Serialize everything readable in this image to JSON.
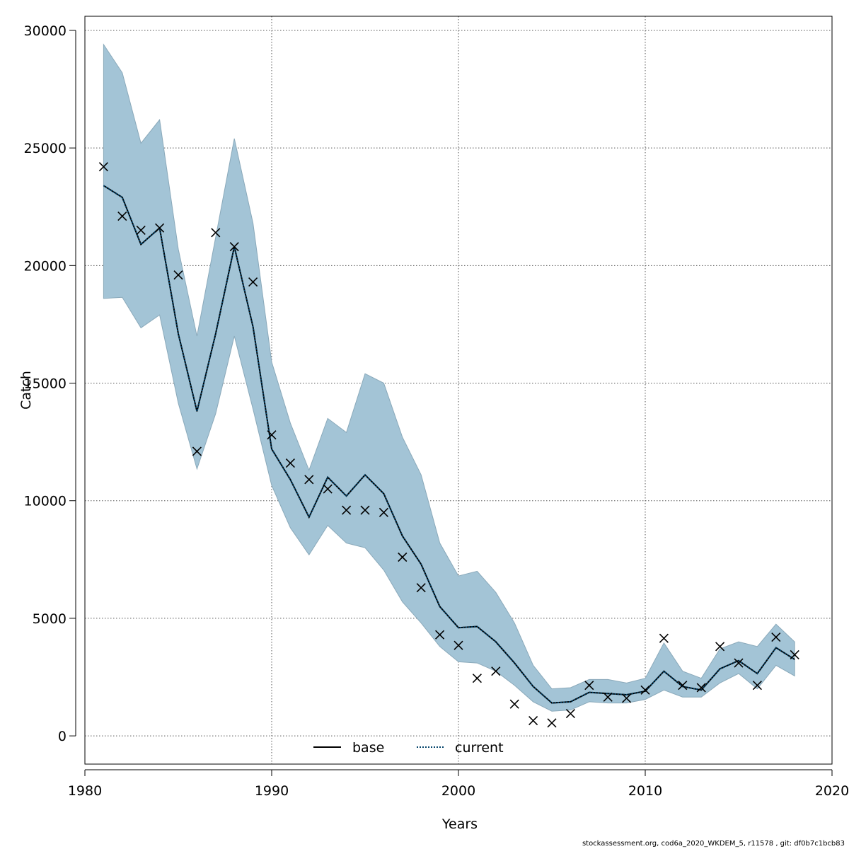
{
  "chart_data": {
    "type": "line",
    "xlabel": "Years",
    "ylabel": "Catch",
    "xlim": [
      1980,
      2020
    ],
    "ylim": [
      -1200,
      30600
    ],
    "x_ticks": [
      1980,
      1990,
      2000,
      2010,
      2020
    ],
    "y_ticks": [
      0,
      5000,
      10000,
      15000,
      20000,
      25000,
      30000
    ],
    "grid": true,
    "legend_position": "bottom-center",
    "legend": [
      "base",
      "current"
    ],
    "colors": {
      "band_fill": "#a3c4d6",
      "band_edge": "#8aa9ba",
      "base_line": "#000000",
      "current_line": "#04446b",
      "markers": "#000000"
    },
    "years": [
      1981,
      1982,
      1983,
      1984,
      1985,
      1986,
      1987,
      1988,
      1989,
      1990,
      1991,
      1992,
      1993,
      1994,
      1995,
      1996,
      1997,
      1998,
      1999,
      2000,
      2001,
      2002,
      2003,
      2004,
      2005,
      2006,
      2007,
      2008,
      2009,
      2010,
      2011,
      2012,
      2013,
      2014,
      2015,
      2016,
      2017,
      2018
    ],
    "series": [
      {
        "name": "base",
        "values": [
          23400,
          22900,
          20900,
          21600,
          17100,
          13800,
          17100,
          20800,
          17400,
          12200,
          10900,
          9300,
          11000,
          10200,
          11100,
          10300,
          8500,
          7300,
          5500,
          4600,
          4650,
          4000,
          3100,
          2100,
          1400,
          1450,
          1850,
          1800,
          1750,
          1900,
          2750,
          2100,
          1950,
          2850,
          3200,
          2650,
          3750,
          3250
        ]
      },
      {
        "name": "current",
        "values": [
          23400,
          22900,
          20900,
          21600,
          17100,
          13800,
          17100,
          20800,
          17400,
          12200,
          10900,
          9300,
          11000,
          10200,
          11100,
          10300,
          8500,
          7300,
          5500,
          4600,
          4650,
          4000,
          3100,
          2100,
          1400,
          1450,
          1850,
          1800,
          1750,
          1900,
          2750,
          2100,
          1950,
          2850,
          3200,
          2650,
          3750,
          3250
        ]
      }
    ],
    "band": {
      "upper": [
        29400,
        28200,
        25200,
        26200,
        20700,
        17000,
        21200,
        25400,
        21800,
        15900,
        13300,
        11300,
        13500,
        12900,
        15400,
        15000,
        12700,
        11100,
        8200,
        6800,
        7000,
        6100,
        4800,
        3000,
        2000,
        2050,
        2400,
        2400,
        2250,
        2450,
        3950,
        2750,
        2450,
        3700,
        4000,
        3800,
        4750,
        4000
      ],
      "lower": [
        18600,
        18650,
        17350,
        17900,
        14150,
        11350,
        13700,
        17000,
        13900,
        10650,
        8850,
        7700,
        8950,
        8200,
        8000,
        7050,
        5700,
        4800,
        3800,
        3150,
        3100,
        2750,
        2150,
        1450,
        1050,
        1100,
        1450,
        1400,
        1400,
        1550,
        1950,
        1650,
        1650,
        2250,
        2650,
        2000,
        3000,
        2550
      ]
    },
    "observed": [
      24200,
      22100,
      21500,
      21600,
      19600,
      12100,
      21400,
      20800,
      19300,
      12800,
      11600,
      10900,
      10500,
      9600,
      9600,
      9500,
      7600,
      6300,
      4300,
      3850,
      2450,
      2750,
      1350,
      650,
      550,
      950,
      2150,
      1650,
      1600,
      1950,
      4150,
      2150,
      2050,
      3800,
      3100,
      2150,
      4200,
      3450
    ]
  },
  "footer": "stockassessment.org, cod6a_2020_WKDEM_5, r11578 , git: df0b7c1bcb83"
}
